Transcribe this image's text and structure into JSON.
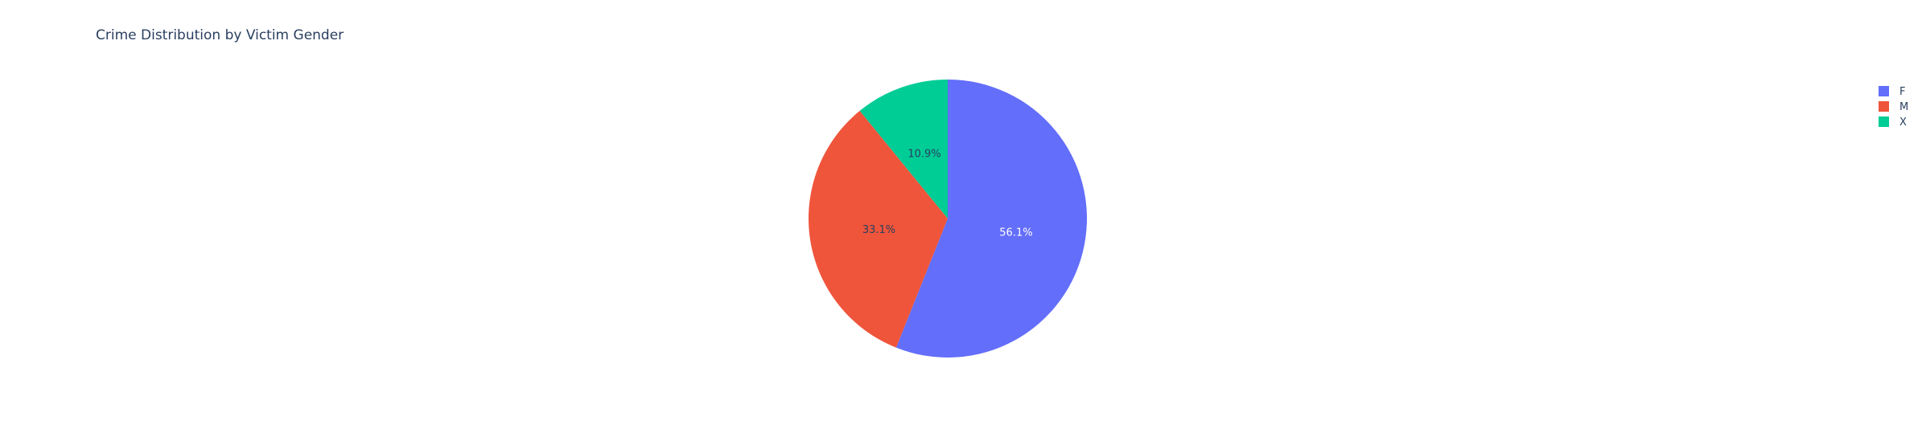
{
  "chart_data": {
    "type": "pie",
    "title": "Crime Distribution by Victim Gender",
    "categories": [
      "F",
      "M",
      "X"
    ],
    "values": [
      56.1,
      33.1,
      10.9
    ],
    "percent_labels": [
      "56.1%",
      "33.1%",
      "10.9%"
    ],
    "colors": [
      "#636efa",
      "#ef553b",
      "#00cc96"
    ],
    "legend": {
      "placement": "top-right",
      "entries": [
        "F",
        "M",
        "X"
      ]
    },
    "direction": "clockwise",
    "start": "top"
  }
}
